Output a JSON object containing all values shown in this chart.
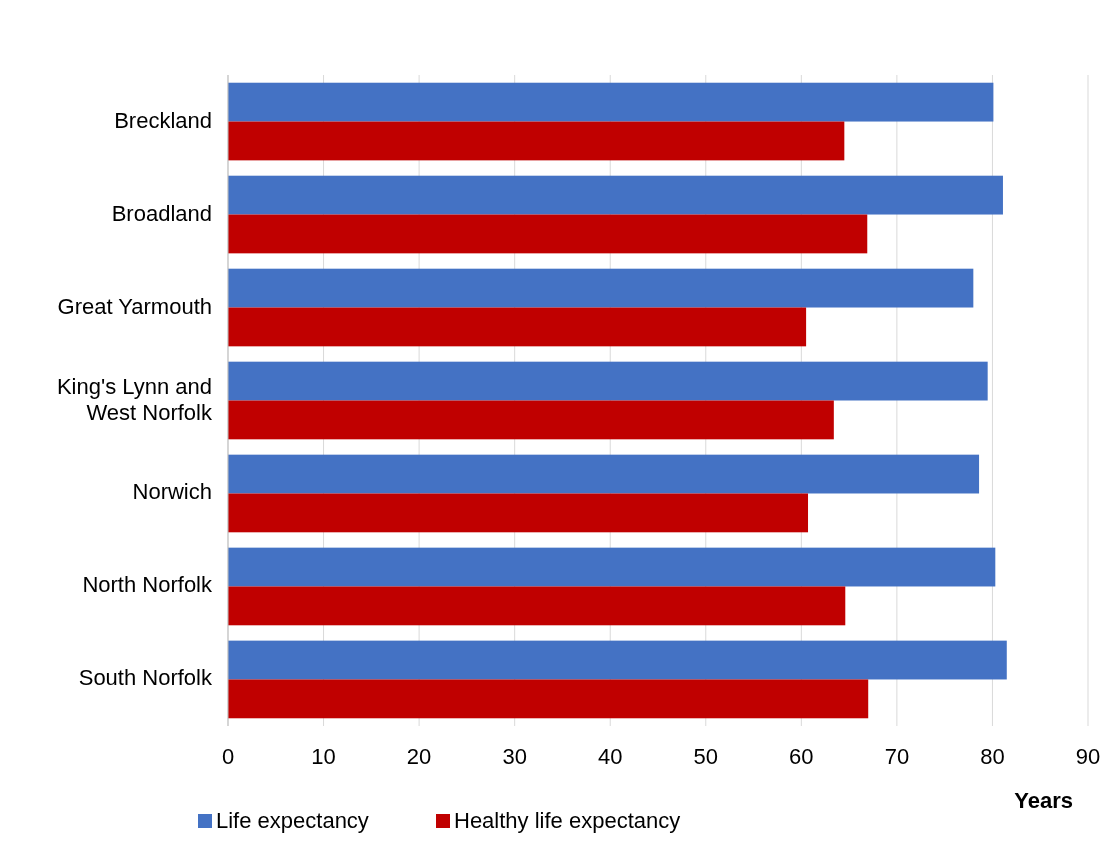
{
  "chart_data": {
    "type": "bar",
    "orientation": "horizontal",
    "xlabel": "Years",
    "categories": [
      "Breckland",
      "Broadland",
      "Great Yarmouth",
      "King's Lynn and West Norfolk",
      "Norwich",
      "North Norfolk",
      "South Norfolk"
    ],
    "series": [
      {
        "name": "Life expectancy",
        "color": "#4472c4",
        "values": [
          80.1,
          81.1,
          78.0,
          79.5,
          78.6,
          80.3,
          81.5
        ]
      },
      {
        "name": "Healthy life expectancy",
        "color": "#c00000",
        "values": [
          64.5,
          66.9,
          60.5,
          63.4,
          60.7,
          64.6,
          67.0
        ]
      }
    ],
    "xlim": [
      0,
      90
    ],
    "xticks": [
      0,
      10,
      20,
      30,
      40,
      50,
      60,
      70,
      80,
      90
    ],
    "grid": "x",
    "legend": "bottom"
  }
}
